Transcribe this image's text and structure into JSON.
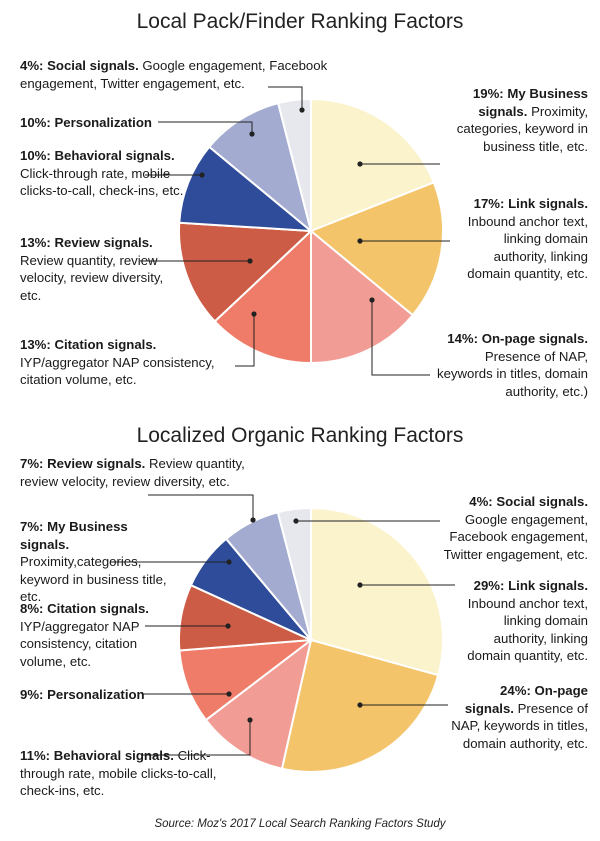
{
  "chart_data": [
    {
      "type": "pie",
      "title": "Local Pack/Finder Ranking Factors",
      "slices": [
        {
          "label": "My Business signals.",
          "value": 19,
          "pct_text": "19%:",
          "desc": "Proximity, categories, keyword in business title, etc.",
          "color": "#fbf3cc"
        },
        {
          "label": "Link signals.",
          "value": 17,
          "pct_text": "17%:",
          "desc": "Inbound anchor text, linking domain authority, linking domain quantity, etc.",
          "color": "#f4c46a"
        },
        {
          "label": "On-page signals.",
          "value": 14,
          "pct_text": "14%:",
          "desc": "Presence of NAP, keywords in titles, domain authority, etc.)",
          "color": "#f29c96"
        },
        {
          "label": "Citation signals.",
          "value": 13,
          "pct_text": "13%:",
          "desc": "IYP/aggregator NAP consistency, citation volume, etc.",
          "color": "#ef7c68"
        },
        {
          "label": "Review signals.",
          "value": 13,
          "pct_text": "13%:",
          "desc": "Review quantity, review velocity, review diversity, etc.",
          "color": "#cc5c45"
        },
        {
          "label": "Behavioral signals.",
          "value": 10,
          "pct_text": "10%:",
          "desc": "Click-through rate, mobile clicks-to-call, check-ins, etc.",
          "color": "#2f4c9a"
        },
        {
          "label": "Personalization",
          "value": 10,
          "pct_text": "10%:",
          "desc": "",
          "color": "#a3acd0"
        },
        {
          "label": "Social signals.",
          "value": 4,
          "pct_text": "4%:",
          "desc": "Google engagement, Facebook engagement, Twitter engagement, etc.",
          "color": "#e7e7ee"
        }
      ]
    },
    {
      "type": "pie",
      "title": "Localized Organic Ranking Factors",
      "slices": [
        {
          "label": "Link signals.",
          "value": 29,
          "pct_text": "29%:",
          "desc": "Inbound anchor text, linking domain authority, linking domain quantity, etc.",
          "color": "#fbf3cc"
        },
        {
          "label": "On-page signals.",
          "value": 24,
          "pct_text": "24%:",
          "desc": "Presence of NAP, keywords in titles, domain authority, etc.",
          "color": "#f4c46a"
        },
        {
          "label": "Behavioral signals.",
          "value": 11,
          "pct_text": "11%:",
          "desc": "Click-through rate, mobile clicks-to-call, check-ins, etc.",
          "color": "#f29c96"
        },
        {
          "label": "Personalization",
          "value": 9,
          "pct_text": "9%:",
          "desc": "",
          "color": "#ef7c68"
        },
        {
          "label": "Citation signals.",
          "value": 8,
          "pct_text": "8%:",
          "desc": "IYP/aggregator NAP consistency, citation volume, etc.",
          "color": "#cc5c45"
        },
        {
          "label": "My Business signals.",
          "value": 7,
          "pct_text": "7%:",
          "desc": "Proximity,categories, keyword in business title, etc.",
          "color": "#2f4c9a"
        },
        {
          "label": "Review signals.",
          "value": 7,
          "pct_text": "7%:",
          "desc": "Review quantity, review velocity, review diversity, etc.",
          "color": "#a3acd0"
        },
        {
          "label": "Social signals.",
          "value": 4,
          "pct_text": "4%:",
          "desc": "Google engagement, Facebook engagement, Twitter engagement, etc.",
          "color": "#e7e7ee"
        }
      ]
    }
  ],
  "source": "Source: Moz's 2017 Local Search Ranking Factors Study"
}
